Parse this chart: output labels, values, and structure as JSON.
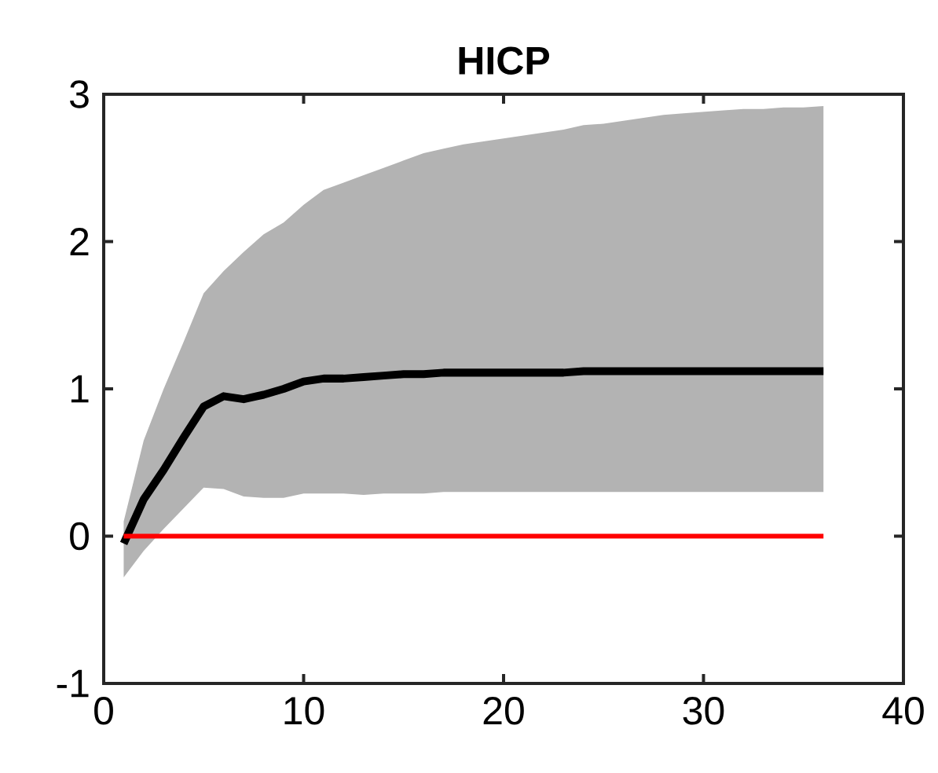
{
  "chart_data": {
    "type": "line",
    "title": "HICP",
    "x": [
      1,
      2,
      3,
      4,
      5,
      6,
      7,
      8,
      9,
      10,
      11,
      12,
      13,
      14,
      15,
      16,
      17,
      18,
      19,
      20,
      21,
      22,
      23,
      24,
      25,
      26,
      27,
      28,
      29,
      30,
      31,
      32,
      33,
      34,
      35,
      36
    ],
    "series": [
      {
        "color": "#000000",
        "values": [
          -0.05,
          0.25,
          0.45,
          0.67,
          0.88,
          0.95,
          0.93,
          0.96,
          1.0,
          1.05,
          1.07,
          1.07,
          1.08,
          1.09,
          1.1,
          1.1,
          1.11,
          1.11,
          1.11,
          1.11,
          1.11,
          1.11,
          1.11,
          1.12,
          1.12,
          1.12,
          1.12,
          1.12,
          1.12,
          1.12,
          1.12,
          1.12,
          1.12,
          1.12,
          1.12,
          1.12
        ],
        "lower": [
          -0.28,
          -0.1,
          0.05,
          0.19,
          0.33,
          0.32,
          0.27,
          0.26,
          0.26,
          0.29,
          0.29,
          0.29,
          0.28,
          0.29,
          0.29,
          0.29,
          0.3,
          0.3,
          0.3,
          0.3,
          0.3,
          0.3,
          0.3,
          0.3,
          0.3,
          0.3,
          0.3,
          0.3,
          0.3,
          0.3,
          0.3,
          0.3,
          0.3,
          0.3,
          0.3,
          0.3
        ],
        "upper": [
          0.1,
          0.65,
          1.0,
          1.32,
          1.65,
          1.8,
          1.93,
          2.05,
          2.13,
          2.25,
          2.35,
          2.4,
          2.45,
          2.5,
          2.55,
          2.6,
          2.63,
          2.66,
          2.68,
          2.7,
          2.72,
          2.74,
          2.76,
          2.79,
          2.8,
          2.82,
          2.84,
          2.86,
          2.87,
          2.88,
          2.89,
          2.9,
          2.9,
          2.91,
          2.91,
          2.92
        ]
      },
      {
        "color": "#ff0000",
        "values": [
          0,
          0,
          0,
          0,
          0,
          0,
          0,
          0,
          0,
          0,
          0,
          0,
          0,
          0,
          0,
          0,
          0,
          0,
          0,
          0,
          0,
          0,
          0,
          0,
          0,
          0,
          0,
          0,
          0,
          0,
          0,
          0,
          0,
          0,
          0,
          0
        ]
      }
    ],
    "xlim": [
      0,
      40
    ],
    "ylim": [
      -1,
      3
    ],
    "xticks": [
      0,
      10,
      20,
      30,
      40
    ],
    "yticks": [
      -1,
      0,
      1,
      2,
      3
    ]
  }
}
